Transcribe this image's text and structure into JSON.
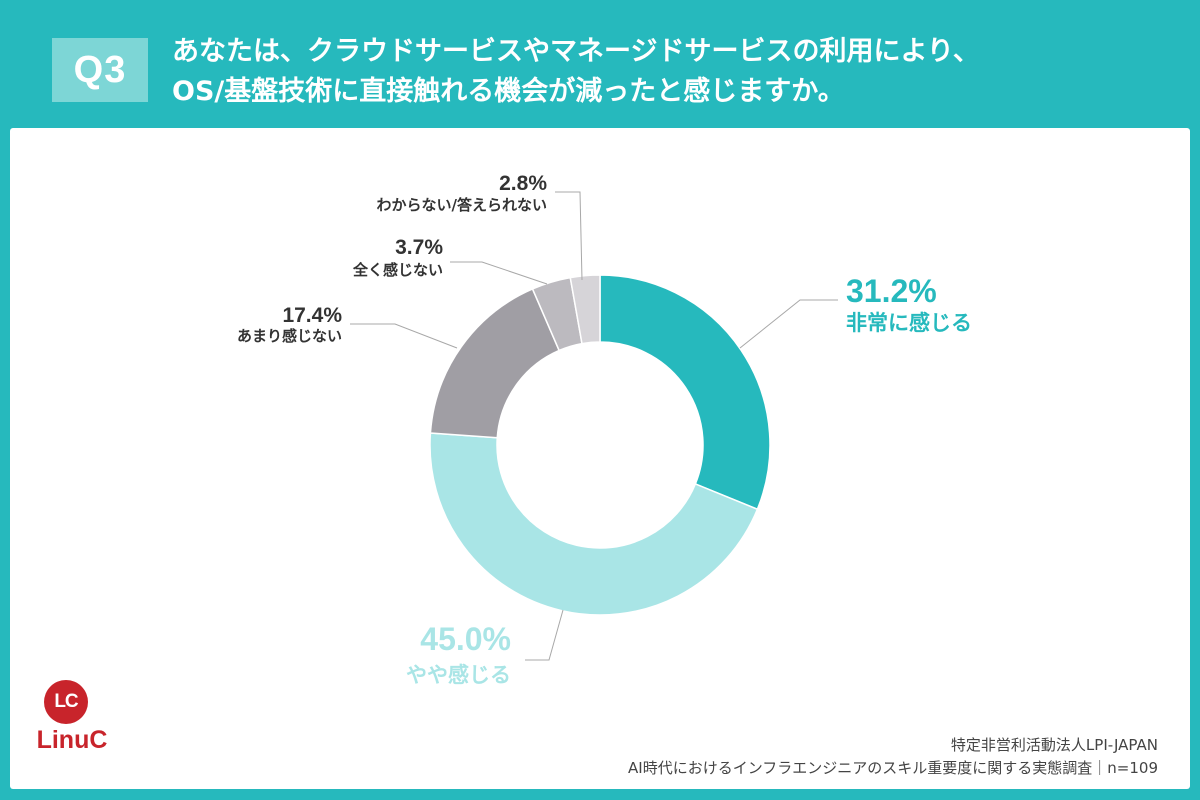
{
  "header": {
    "badge": "Q3",
    "question_line1": "あなたは、クラウドサービスやマネージドサービスの利用により、",
    "question_line2": "OS/基盤技術に直接触れる機会が減ったと感じますか。"
  },
  "chart_data": {
    "type": "pie",
    "donut": true,
    "categories": [
      "非常に感じる",
      "やや感じる",
      "あまり感じない",
      "全く感じない",
      "わからない/答えられない"
    ],
    "values": [
      31.2,
      45.0,
      17.4,
      3.7,
      2.8
    ],
    "value_labels": [
      "31.2%",
      "45.0%",
      "17.4%",
      "3.7%",
      "2.8%"
    ],
    "colors": [
      "#26b9bd",
      "#a9e5e6",
      "#a09ea4",
      "#bcbabf",
      "#d6d4d8"
    ]
  },
  "logo": {
    "mark": "LC",
    "name": "LinuC"
  },
  "footer": {
    "org": "特定非営利活動法人LPI-JAPAN",
    "source": "AI時代におけるインフラエンジニアのスキル重要度に関する実態調査｜n=109"
  }
}
